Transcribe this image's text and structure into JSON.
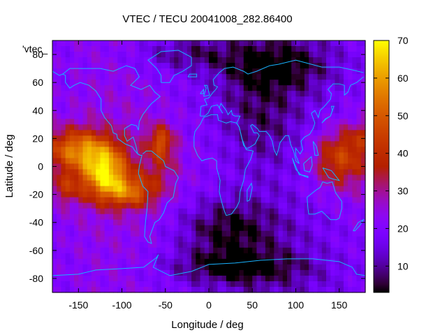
{
  "chart_data": {
    "type": "heatmap",
    "title": "VTEC / TECU 20041008_282.86400",
    "xlabel": "Longitude / deg",
    "ylabel": "Latitude / deg",
    "legend_label": "'vtec_",
    "xlim": [
      -180,
      180
    ],
    "ylim": [
      -90,
      90
    ],
    "x_ticks": [
      -150,
      -100,
      -50,
      0,
      50,
      100,
      150
    ],
    "y_ticks": [
      -80,
      -60,
      -40,
      -20,
      0,
      20,
      40,
      60,
      80
    ],
    "colorbar": {
      "min": 3,
      "max": 70,
      "ticks": [
        10,
        20,
        30,
        40,
        50,
        60,
        70
      ]
    },
    "colormap": "gnuplot-pm3d (black-purple-red-orange-yellow)",
    "overlay": "coastlines",
    "grid": false,
    "field_features": [
      {
        "feature": "equatorial-anomaly-peak",
        "lon": -120,
        "lat": -5,
        "value": 68
      },
      {
        "feature": "equatorial-anomaly-north-crest",
        "lon": -150,
        "lat": 12,
        "value": 52
      },
      {
        "feature": "equatorial-anomaly-south-crest",
        "lon": -90,
        "lat": -18,
        "value": 48
      },
      {
        "feature": "atlantic-patch",
        "lon": -55,
        "lat": 18,
        "value": 42
      },
      {
        "feature": "pacific-west-patch",
        "lon": 150,
        "lat": 5,
        "value": 44
      },
      {
        "feature": "south-atlantic-low",
        "lon": 20,
        "lat": -45,
        "value": 6
      },
      {
        "feature": "antarctic-low",
        "lon": 30,
        "lat": -72,
        "value": 5
      },
      {
        "feature": "siberia-low",
        "lon": 80,
        "lat": 72,
        "value": 6
      }
    ]
  }
}
